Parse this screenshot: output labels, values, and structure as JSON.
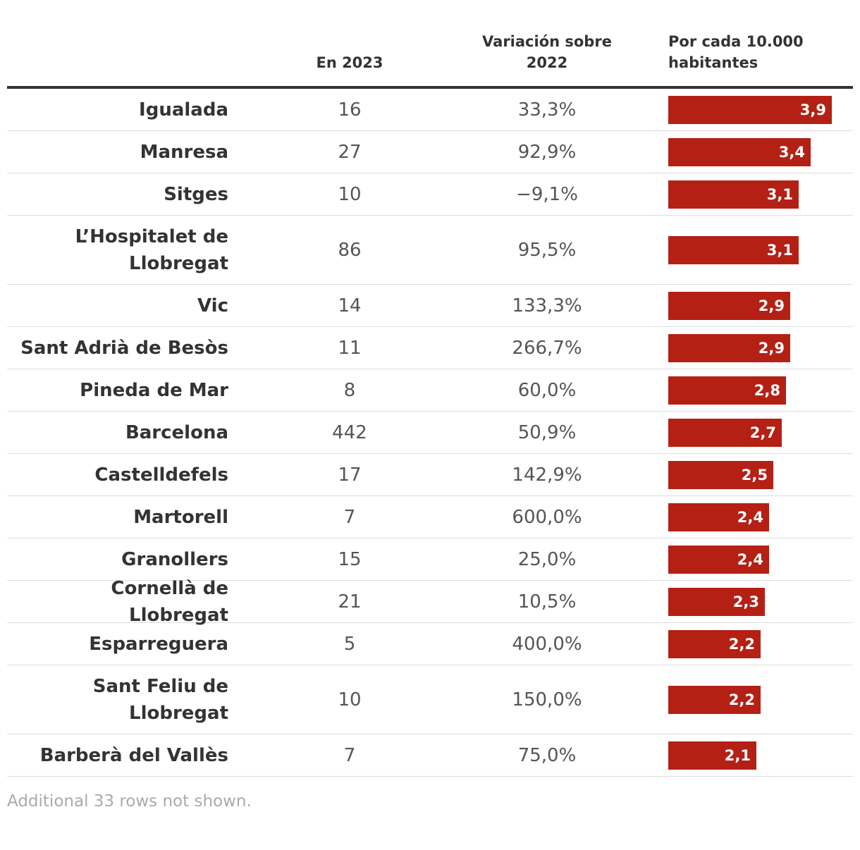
{
  "colors": {
    "bar": "#b52015",
    "text": "#333333",
    "muted": "#aaaaaa"
  },
  "header": {
    "col_2023": "En 2023",
    "col_variation": "Variación sobre 2022",
    "col_rate": "Por cada 10.000 habitantes"
  },
  "chart_data": {
    "type": "table",
    "columns": [
      "",
      "En 2023",
      "Variación sobre 2022",
      "Por cada 10.000 habitantes"
    ],
    "rate_max": 4.4,
    "rows": [
      {
        "name": "Igualada",
        "count": "16",
        "variation": "33,3%",
        "rate": 3.9,
        "rate_label": "3,9"
      },
      {
        "name": "Manresa",
        "count": "27",
        "variation": "92,9%",
        "rate": 3.4,
        "rate_label": "3,4"
      },
      {
        "name": "Sitges",
        "count": "10",
        "variation": "−9,1%",
        "rate": 3.1,
        "rate_label": "3,1"
      },
      {
        "name": "L’Hospitalet de Llobregat",
        "count": "86",
        "variation": "95,5%",
        "rate": 3.1,
        "rate_label": "3,1",
        "tall": true
      },
      {
        "name": "Vic",
        "count": "14",
        "variation": "133,3%",
        "rate": 2.9,
        "rate_label": "2,9"
      },
      {
        "name": "Sant Adrià de Besòs",
        "count": "11",
        "variation": "266,7%",
        "rate": 2.9,
        "rate_label": "2,9"
      },
      {
        "name": "Pineda de Mar",
        "count": "8",
        "variation": "60,0%",
        "rate": 2.8,
        "rate_label": "2,8"
      },
      {
        "name": "Barcelona",
        "count": "442",
        "variation": "50,9%",
        "rate": 2.7,
        "rate_label": "2,7"
      },
      {
        "name": "Castelldefels",
        "count": "17",
        "variation": "142,9%",
        "rate": 2.5,
        "rate_label": "2,5"
      },
      {
        "name": "Martorell",
        "count": "7",
        "variation": "600,0%",
        "rate": 2.4,
        "rate_label": "2,4"
      },
      {
        "name": "Granollers",
        "count": "15",
        "variation": "25,0%",
        "rate": 2.4,
        "rate_label": "2,4"
      },
      {
        "name": "Cornellà de Llobregat",
        "count": "21",
        "variation": "10,5%",
        "rate": 2.3,
        "rate_label": "2,3"
      },
      {
        "name": "Esparreguera",
        "count": "5",
        "variation": "400,0%",
        "rate": 2.2,
        "rate_label": "2,2"
      },
      {
        "name": "Sant Feliu de Llobregat",
        "count": "10",
        "variation": "150,0%",
        "rate": 2.2,
        "rate_label": "2,2",
        "tall": true
      },
      {
        "name": "Barberà del Vallès",
        "count": "7",
        "variation": "75,0%",
        "rate": 2.1,
        "rate_label": "2,1"
      }
    ]
  },
  "footnote": "Additional 33 rows not shown."
}
